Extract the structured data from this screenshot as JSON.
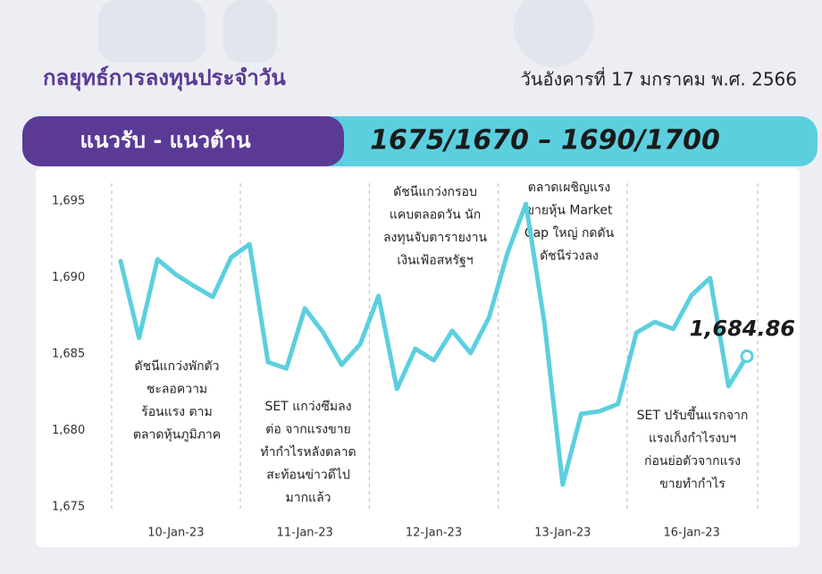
{
  "header": {
    "title": "กลยุทธ์การลงทุนประจำวัน",
    "date": "วันอังคารที่ 17 มกราคม พ.ศ. 2566"
  },
  "banner": {
    "label": "แนวรับ - แนวต้าน",
    "levels": "1675/1670 – 1690/1700"
  },
  "chart_data": {
    "type": "line",
    "categories": [
      null,
      null,
      null,
      "10-Jan-23",
      null,
      null,
      null,
      null,
      null,
      null,
      "11-Jan-23",
      null,
      null,
      null,
      null,
      null,
      null,
      "12-Jan-23",
      null,
      null,
      null,
      null,
      null,
      null,
      "13-Jan-23",
      null,
      null,
      null,
      null,
      null,
      null,
      "16-Jan-23",
      null,
      null,
      null
    ],
    "series": [
      {
        "name": "SET",
        "color": "#5ccfdf",
        "values": [
          1691.08,
          1686.05,
          1691.2,
          1690.2,
          1689.44,
          1688.74,
          1691.32,
          1692.19,
          1684.47,
          1684.06,
          1687.98,
          1686.4,
          1684.3,
          1685.64,
          1688.8,
          1682.72,
          1685.35,
          1684.59,
          1686.52,
          1685.06,
          1687.4,
          1691.6,
          1694.82,
          1687.1,
          1676.46,
          1681.08,
          1681.26,
          1681.73,
          1686.4,
          1687.1,
          1686.64,
          1688.86,
          1689.97,
          1682.9,
          1684.86
        ],
        "value_labels": [
          null,
          null,
          null,
          null,
          null,
          null,
          null,
          null,
          null,
          null,
          null,
          null,
          null,
          null,
          null,
          null,
          null,
          null,
          null,
          null,
          null,
          null,
          null,
          null,
          null,
          null,
          null,
          null,
          null,
          null,
          null,
          null,
          null,
          null,
          "1,684.86"
        ]
      }
    ],
    "ylim": [
      1675,
      1695
    ],
    "yticks": [
      {
        "value": 1675,
        "label": "1,675"
      },
      {
        "value": 1680,
        "label": "1,680"
      },
      {
        "value": 1685,
        "label": "1,685"
      },
      {
        "value": 1690,
        "label": "1,690"
      },
      {
        "value": 1695,
        "label": "1,695"
      }
    ],
    "annotations": [
      [
        "ดัชนีแกว่งพักตัว",
        "ชะลอความ",
        "ร้อนแรง ตาม",
        "ตลาดหุ้นภูมิภาค"
      ],
      [
        "SET แกว่งซึมลง",
        "ต่อ จากแรงขาย",
        "ทำกำไรหลังตลาด",
        "สะท้อนข่าวดีไป",
        "มากแล้ว"
      ],
      [
        "ดัชนีแกว่งกรอบ",
        "แคบตลอดวัน นัก",
        "ลงทุนจับตารายงาน",
        "เงินเฟ้อสหรัฐฯ"
      ],
      [
        "ตลาดเผชิญแรง",
        "ขายหุ้น Market",
        "Cap ใหญ่ กดดัน",
        "ดัชนีร่วงลง"
      ],
      [
        "SET ปรับขึ้นแรกจาก",
        "แรงเก็งกำไรงบฯ",
        "ก่อนย่อตัวจากแรง",
        "ขายทำกำไร"
      ]
    ]
  }
}
